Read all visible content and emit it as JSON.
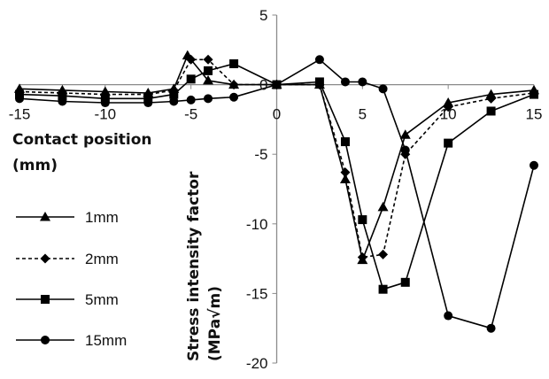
{
  "chart_data": {
    "type": "line",
    "title": "",
    "xlabel_lines": [
      "Contact position",
      "(mm)"
    ],
    "ylabel_lines": [
      "Stress intensity factor",
      "(MPa√m)"
    ],
    "xlim": [
      -15,
      15
    ],
    "ylim": [
      -20,
      5
    ],
    "xticks": [
      -15,
      -10,
      -5,
      0,
      5,
      10,
      15
    ],
    "yticks": [
      5,
      0,
      -5,
      -10,
      -15,
      -20
    ],
    "grid": false,
    "legend": "bottom-left",
    "series": [
      {
        "name": "1mm",
        "marker": "triangle",
        "dash": "solid",
        "x": [
          -15,
          -12.5,
          -10,
          -7.5,
          -6,
          -5.2,
          -4,
          -2.5,
          0,
          2.5,
          4,
          5,
          6.2,
          7.5,
          10,
          12.5,
          15
        ],
        "y": [
          -0.3,
          -0.4,
          -0.5,
          -0.6,
          -0.3,
          2.1,
          0.3,
          0,
          0,
          0,
          -6.8,
          -12.6,
          -8.8,
          -3.6,
          -1.3,
          -0.7,
          -0.4
        ]
      },
      {
        "name": "2mm",
        "marker": "diamond",
        "dash": "dashed",
        "x": [
          -15,
          -12.5,
          -10,
          -7.5,
          -6,
          -5,
          -4,
          -2.5,
          0,
          2.5,
          4,
          5,
          6.2,
          7.5,
          10,
          12.5,
          15
        ],
        "y": [
          -0.5,
          -0.6,
          -0.7,
          -0.7,
          -0.4,
          1.8,
          1.8,
          0,
          0,
          0,
          -6.3,
          -12.4,
          -12.2,
          -5,
          -1.6,
          -1,
          -0.6
        ]
      },
      {
        "name": "5mm",
        "marker": "square",
        "dash": "solid",
        "x": [
          -15,
          -12.5,
          -10,
          -7.5,
          -6,
          -5,
          -4,
          -2.5,
          0,
          2.5,
          4,
          5,
          6.2,
          7.5,
          10,
          12.5,
          15
        ],
        "y": [
          -0.7,
          -0.8,
          -1,
          -1,
          -0.7,
          0.4,
          1,
          1.5,
          0,
          0.2,
          -4.1,
          -9.7,
          -14.7,
          -14.2,
          -4.2,
          -1.9,
          -0.7
        ]
      },
      {
        "name": "15mm",
        "marker": "circle",
        "dash": "solid",
        "x": [
          -15,
          -12.5,
          -10,
          -7.5,
          -6,
          -5,
          -4,
          -2.5,
          0,
          2.5,
          4,
          5,
          6.2,
          7.5,
          10,
          12.5,
          15
        ],
        "y": [
          -1,
          -1.2,
          -1.3,
          -1.3,
          -1.2,
          -1.1,
          -1,
          -0.9,
          0,
          1.8,
          0.2,
          0.2,
          -0.3,
          -4.7,
          -16.6,
          -17.5,
          -5.8
        ]
      }
    ]
  }
}
